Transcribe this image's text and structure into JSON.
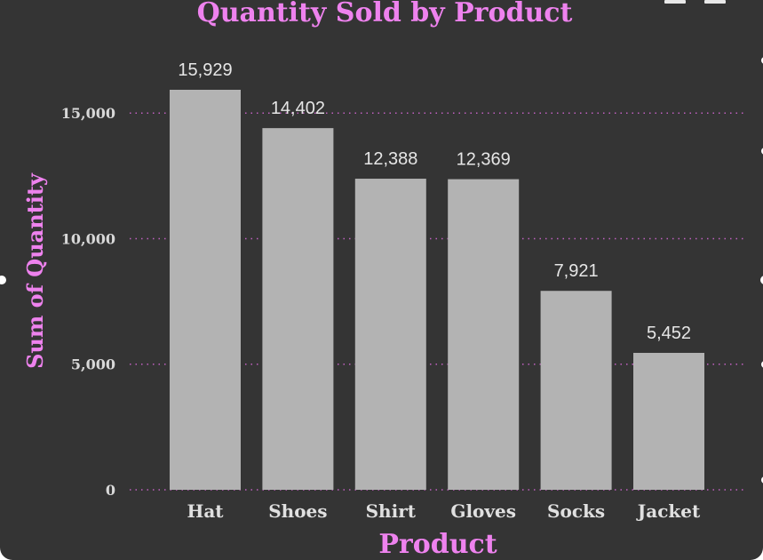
{
  "chart_data": {
    "type": "bar",
    "title": "Quantity Sold by Product",
    "xlabel": "Product",
    "ylabel": "Sum of Quantity",
    "categories": [
      "Hat",
      "Shoes",
      "Shirt",
      "Gloves",
      "Socks",
      "Jacket"
    ],
    "values": [
      15929,
      14402,
      12388,
      12369,
      7921,
      5452
    ],
    "data_labels": [
      "15,929",
      "14,402",
      "12,388",
      "12,369",
      "7,921",
      "5,452"
    ],
    "yticks": [
      0,
      5000,
      10000,
      15000
    ],
    "ytick_labels": [
      "0",
      "5,000",
      "10,000",
      "15,000"
    ],
    "ylim": [
      0,
      15929
    ],
    "grid": true,
    "legend": "none",
    "colors": {
      "background": "#343434",
      "bar": "#b3b3b3",
      "accent": "#ee82ee",
      "grid": "#c060c0"
    }
  }
}
